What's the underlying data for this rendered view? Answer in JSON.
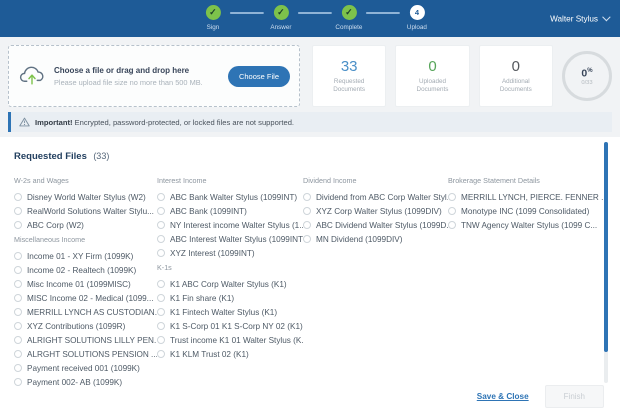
{
  "colors": {
    "topbar_bg": "#1e5b97",
    "accent_blue": "#2e74b5",
    "step_done_green": "#7dc24b",
    "requested_value": "#4a8fc7",
    "uploaded_value": "#57a55a",
    "additional_value": "#55595e"
  },
  "topbar": {
    "user_name": "Walter Stylus",
    "steps": [
      {
        "label": "Sign",
        "state": "done"
      },
      {
        "label": "Answer",
        "state": "done"
      },
      {
        "label": "Complete",
        "state": "done"
      },
      {
        "label": "Upload",
        "state": "current",
        "number": "4"
      }
    ]
  },
  "upload": {
    "title": "Choose a file or drag and drop here",
    "subtitle": "Please upload file size no more than 500 MB.",
    "button": "Choose File"
  },
  "stats": [
    {
      "key": "requested",
      "value": "33",
      "label": "Requested Documents",
      "color": "#4a8fc7"
    },
    {
      "key": "uploaded",
      "value": "0",
      "label": "Uploaded Documents",
      "color": "#57a55a"
    },
    {
      "key": "additional",
      "value": "0",
      "label": "Additional Documents",
      "color": "#55595e"
    }
  ],
  "progress": {
    "value": "0",
    "unit": "%",
    "fraction": "0/33"
  },
  "banner": {
    "label": "Important!",
    "text": "Encrypted, password-protected, or locked files are not supported."
  },
  "requested_files": {
    "title": "Requested Files",
    "count": "(33)",
    "columns": [
      {
        "groups": [
          {
            "header": "W-2s and Wages",
            "items": [
              "Disney World Walter Stylus (W2)",
              "RealWorld Solutions Walter Stylu...",
              "ABC Corp (W2)"
            ]
          },
          {
            "header": "Miscellaneous Income",
            "items": [
              "Income 01 - XY Firm (1099K)",
              "Income 02 - Realtech (1099K)",
              "Misc Income 01 (1099MISC)",
              "MISC Income 02 - Medical (1099...",
              "MERRILL LYNCH AS CUSTODIAN...",
              "XYZ Contributions (1099R)",
              "ALRIGHT SOLUTIONS LILLY PEN...",
              "ALRGHT SOLUTIONS PENSION ...",
              "Payment received 001 (1099K)",
              "Payment 002- AB (1099K)"
            ]
          }
        ]
      },
      {
        "groups": [
          {
            "header": "Interest Income",
            "items": [
              "ABC Bank Walter Stylus (1099INT)",
              "ABC Bank (1099INT)",
              "NY Interest income Walter Stylus (1...",
              "ABC Interest Walter Stylus (1099INT)",
              "XYZ Interest (1099INT)"
            ]
          },
          {
            "header": "K-1s",
            "items": [
              "K1 ABC Corp Walter Stylus (K1)",
              "K1 Fin share (K1)",
              "K1 Fintech Walter Stylus (K1)",
              "K1 S-Corp 01 K1 S-Corp NY 02 (K1)",
              "Trust income K1 01 Walter Stylus (K...",
              "K1 KLM Trust 02 (K1)"
            ]
          }
        ]
      },
      {
        "groups": [
          {
            "header": "Dividend Income",
            "items": [
              "Dividend from ABC Corp Walter Styl...",
              "XYZ Corp Walter Stylus (1099DIV)",
              "ABC Dividend Walter Stylus (1099D...",
              "MN Dividend (1099DIV)"
            ]
          }
        ]
      },
      {
        "groups": [
          {
            "header": "Brokerage Statement Details",
            "items": [
              "MERRILL LYNCH, PIERCE. FENNER ...",
              "Monotype INC (1099 Consolidated)",
              "TNW Agency Walter Stylus (1099 C..."
            ]
          }
        ]
      }
    ]
  },
  "footer": {
    "save_label": "Save & Close",
    "finish_label": "Finish"
  }
}
